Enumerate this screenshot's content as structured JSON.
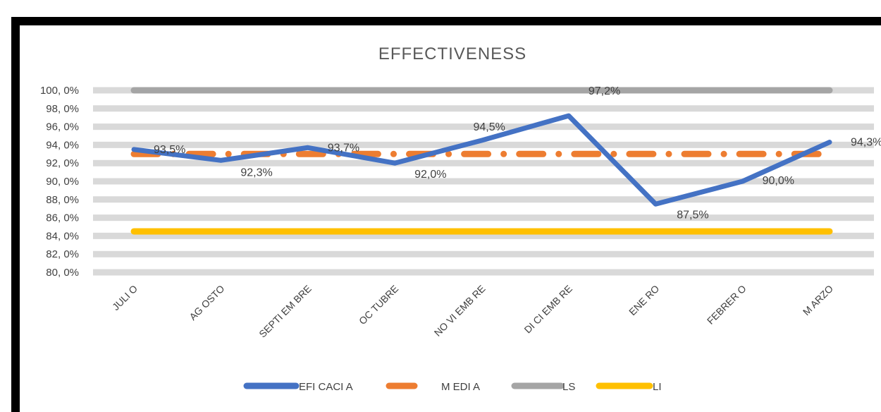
{
  "chart_data": {
    "type": "line",
    "title": "EFFECTIVENESS",
    "categories": [
      "JULIO",
      "AGOSTO",
      "SEPTIEMBRE",
      "OCTUBRE",
      "NOVIEMBRE",
      "DICIEMBRE",
      "ENERO",
      "FEBRERO",
      "MARZO"
    ],
    "category_labels": [
      "JULI O",
      "AG OSTO",
      "SEPTI EM BRE",
      "OC TUBRE",
      "NO VI EMB RE",
      "DI CI EMB RE",
      "ENE RO",
      "FEBRER O",
      "M ARZO"
    ],
    "ylim": [
      80,
      100
    ],
    "yticks": [
      80,
      82,
      84,
      86,
      88,
      90,
      92,
      94,
      96,
      98,
      100
    ],
    "ytick_labels": [
      "80, 0%",
      "82, 0%",
      "84, 0%",
      "86, 0%",
      "88, 0%",
      "90, 0%",
      "92, 0%",
      "94, 0%",
      "96, 0%",
      "98, 0%",
      "100, 0%"
    ],
    "grid": true,
    "legend_position": "bottom",
    "series": [
      {
        "name": "EFI CACI A",
        "key": "eficacia",
        "color": "#4472C4",
        "style": "solid",
        "values": [
          93.5,
          92.3,
          93.7,
          92.0,
          94.5,
          97.2,
          87.5,
          90.0,
          94.3
        ],
        "data_labels": [
          "93,5%",
          "92,3%",
          "93,7%",
          "92,0%",
          "94,5%",
          "97,2%",
          "87,5%",
          "90,0%",
          "94,3%"
        ]
      },
      {
        "name": "M EDI A",
        "key": "media",
        "color": "#ED7D31",
        "style": "dash-dot",
        "values": [
          93.0,
          93.0,
          93.0,
          93.0,
          93.0,
          93.0,
          93.0,
          93.0,
          93.0
        ]
      },
      {
        "name": "LS",
        "key": "ls",
        "color": "#A5A5A5",
        "style": "solid",
        "values": [
          100,
          100,
          100,
          100,
          100,
          100,
          100,
          100,
          100
        ]
      },
      {
        "name": "LI",
        "key": "li",
        "color": "#FFC000",
        "style": "solid",
        "values": [
          84.5,
          84.5,
          84.5,
          84.5,
          84.5,
          84.5,
          84.5,
          84.5,
          84.5
        ]
      }
    ]
  }
}
